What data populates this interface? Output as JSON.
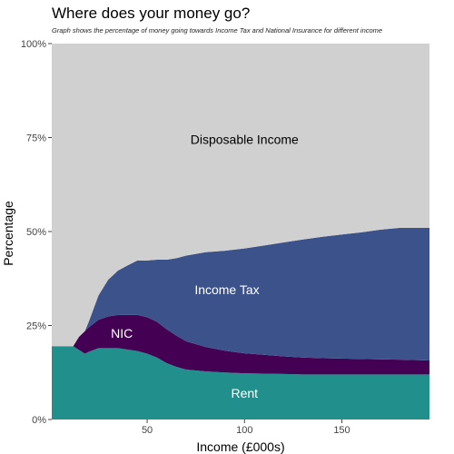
{
  "chart_data": {
    "type": "area",
    "stacked": true,
    "title": "Where does your money go?",
    "subtitle": "Graph shows the percentage of money going towards Income Tax and National Insurance for different income",
    "xlabel": "Income (£000s)",
    "ylabel": "Percentage",
    "xlim": [
      1,
      195
    ],
    "ylim": [
      0,
      100
    ],
    "x_ticks": [
      50,
      100,
      150
    ],
    "y_ticks": [
      {
        "value": 0,
        "label": "0%"
      },
      {
        "value": 25,
        "label": "25%"
      },
      {
        "value": 50,
        "label": "50%"
      },
      {
        "value": 75,
        "label": "75%"
      },
      {
        "value": 100,
        "label": "100%"
      }
    ],
    "grid": false,
    "legend": "none",
    "x": [
      1,
      12,
      15,
      18,
      20,
      25,
      30,
      35,
      40,
      45,
      50,
      55,
      60,
      65,
      70,
      80,
      90,
      100,
      110,
      120,
      130,
      140,
      150,
      160,
      170,
      180,
      195
    ],
    "series": [
      {
        "name": "Rent",
        "color": "#21908C",
        "label_x": 100,
        "label_y": 7,
        "values": [
          19.5,
          19.5,
          18.5,
          17.5,
          18,
          19,
          19,
          19,
          18.6,
          18.2,
          17.5,
          16.5,
          15,
          14,
          13.3,
          12.8,
          12.5,
          12.3,
          12.2,
          12.1,
          12,
          12,
          12,
          12,
          12,
          12,
          12
        ]
      },
      {
        "name": "NIC",
        "color": "#440154",
        "label_x": 37,
        "label_y": 23,
        "values": [
          0,
          0,
          3.5,
          6,
          6.5,
          7.5,
          8.4,
          8.8,
          9.2,
          9.6,
          9.7,
          9.5,
          9,
          8.3,
          7.5,
          6.5,
          5.8,
          5.3,
          5,
          4.7,
          4.5,
          4.3,
          4.2,
          4.1,
          4,
          3.9,
          3.7
        ]
      },
      {
        "name": "Income Tax",
        "color": "#3B528B",
        "label_x": 91,
        "label_y": 34.5,
        "values": [
          0,
          0,
          0,
          0,
          1.5,
          6.5,
          9.8,
          11.8,
          13.2,
          14.5,
          15.1,
          16.5,
          18.5,
          20.6,
          22.8,
          25.2,
          26.6,
          27.9,
          29.1,
          30.3,
          31.4,
          32.3,
          33,
          33.7,
          34.5,
          35.1,
          35.3
        ]
      },
      {
        "name": "Disposable Income",
        "color": "#D0D0D0",
        "label_x": 100,
        "label_y": 74.5,
        "values": [
          80.5,
          80.5,
          78,
          76.5,
          74,
          67,
          62.8,
          60.4,
          59,
          57.7,
          57.7,
          57.5,
          57.5,
          57.1,
          56.4,
          55.5,
          55.1,
          54.5,
          53.7,
          52.9,
          52.1,
          51.4,
          50.8,
          50.2,
          49.5,
          49,
          49
        ]
      }
    ]
  }
}
